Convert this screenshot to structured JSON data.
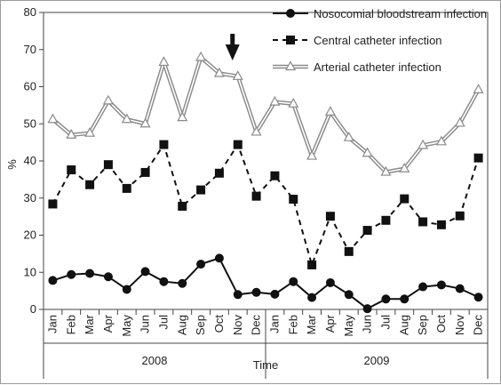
{
  "chart_data": {
    "type": "line",
    "xlabel": "Time",
    "ylabel": "%",
    "ylim": [
      0,
      80
    ],
    "yticks": [
      0,
      10,
      20,
      30,
      40,
      50,
      60,
      70,
      80
    ],
    "grid": false,
    "legend_position": "top-right",
    "categories": [
      "Jan",
      "Feb",
      "Mar",
      "Apr",
      "May",
      "Jun",
      "Jul",
      "Aug",
      "Sep",
      "Oct",
      "Nov",
      "Dec",
      "Jan",
      "Feb",
      "Mar",
      "Apr",
      "May",
      "Jun",
      "Jul",
      "Aug",
      "Sep",
      "Oct",
      "Nov",
      "Dec"
    ],
    "year_groups": [
      {
        "label": "2008",
        "start_index": 0,
        "end_index": 11
      },
      {
        "label": "2009",
        "start_index": 12,
        "end_index": 23
      }
    ],
    "annotation": {
      "type": "down-arrow",
      "category_index": 10
    },
    "series": [
      {
        "name": "Nosocomial bloodstream infection",
        "style": "solid",
        "marker": "circle",
        "color": "#111111",
        "values": [
          7.8,
          9.4,
          9.7,
          8.8,
          5.4,
          10.2,
          7.5,
          7.0,
          12.2,
          13.8,
          4.0,
          4.6,
          4.1,
          7.5,
          3.2,
          7.2,
          4.0,
          0.2,
          2.8,
          2.8,
          6.1,
          6.6,
          5.6,
          3.3
        ]
      },
      {
        "name": "Central catheter infection",
        "style": "dashed",
        "marker": "square",
        "color": "#111111",
        "values": [
          28.4,
          37.6,
          33.6,
          39.0,
          32.6,
          36.9,
          44.4,
          27.8,
          32.2,
          36.7,
          44.4,
          30.5,
          36.0,
          29.7,
          12.0,
          25.1,
          15.6,
          21.3,
          24.0,
          29.8,
          23.6,
          22.8,
          25.2,
          40.8
        ]
      },
      {
        "name": "Arterial catheter infection",
        "style": "double-line",
        "marker": "triangle",
        "color": "#8a8a8a",
        "values": [
          51.2,
          47.0,
          47.5,
          56.2,
          51.2,
          50.0,
          66.6,
          51.7,
          67.9,
          63.6,
          62.8,
          47.8,
          55.9,
          55.4,
          41.3,
          53.2,
          46.3,
          42.1,
          37.0,
          37.9,
          44.2,
          45.2,
          50.2,
          59.2
        ]
      }
    ]
  }
}
